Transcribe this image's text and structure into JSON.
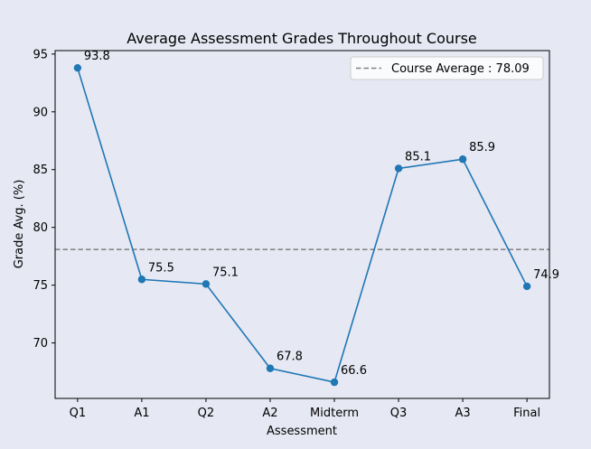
{
  "chart_data": {
    "type": "line",
    "title": "Average Assessment Grades Throughout Course",
    "xlabel": "Assessment",
    "ylabel": "Grade Avg. (%)",
    "categories": [
      "Q1",
      "A1",
      "Q2",
      "A2",
      "Midterm",
      "Q3",
      "A3",
      "Final"
    ],
    "series": [
      {
        "values": [
          93.8,
          75.5,
          75.1,
          67.8,
          66.6,
          85.1,
          85.9,
          74.9
        ],
        "color": "#1f77b4"
      }
    ],
    "data_labels": [
      "93.8",
      "75.5",
      "75.1",
      "67.8",
      "66.6",
      "85.1",
      "85.9",
      "74.9"
    ],
    "reference_line": {
      "value": 78.09,
      "label": "Course Average : 78.09",
      "color": "#808080",
      "style": "dashed"
    },
    "yticks": [
      70,
      75,
      80,
      85,
      90,
      95
    ],
    "ylim": [
      65.2,
      95.3
    ],
    "grid": false,
    "legend_position": "top-right",
    "background_color": "#e6e8f4",
    "plot_background_color": "#e6e8f4"
  }
}
